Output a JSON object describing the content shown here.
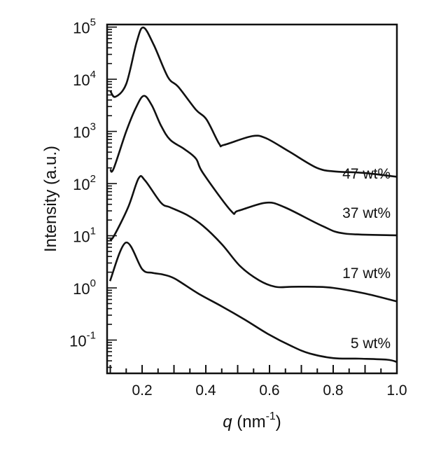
{
  "chart_data": {
    "type": "line",
    "title": "",
    "xlabel": {
      "italic": "q",
      "rest": " (nm",
      "sup": "-1",
      "close": ")"
    },
    "ylabel": "Intensity (a.u.)",
    "xscale": "linear",
    "yscale": "log",
    "xlim": [
      0.09,
      1.0
    ],
    "ylim": [
      0.023,
      112000
    ],
    "xticks": [
      "0.2",
      "0.4",
      "0.6",
      "0.8",
      "1.0"
    ],
    "xtick_values": [
      0.2,
      0.4,
      0.6,
      0.8,
      1.0
    ],
    "yticks": [
      {
        "base": "10",
        "exp": "5",
        "value": 100000
      },
      {
        "base": "10",
        "exp": "4",
        "value": 10000
      },
      {
        "base": "10",
        "exp": "3",
        "value": 1000
      },
      {
        "base": "10",
        "exp": "2",
        "value": 100
      },
      {
        "base": "10",
        "exp": "1",
        "value": 10
      },
      {
        "base": "10",
        "exp": "0",
        "value": 1
      },
      {
        "base": "10",
        "exp": "-1",
        "value": 0.1
      }
    ],
    "grid": false,
    "legend": "none",
    "line_color": "#111111",
    "series": [
      {
        "name": "47 wt%",
        "x": [
          0.1,
          0.116,
          0.15,
          0.183,
          0.204,
          0.237,
          0.281,
          0.314,
          0.369,
          0.402,
          0.442,
          0.457,
          0.545,
          0.589,
          0.662,
          0.749,
          0.809,
          0.897,
          1.0
        ],
        "y": [
          6000,
          4600,
          8100,
          52000,
          98000,
          45000,
          11000,
          7100,
          2600,
          1700,
          580,
          550,
          810,
          740,
          410,
          200,
          170,
          160,
          135
        ]
      },
      {
        "name": "37 wt%",
        "x": [
          0.1,
          0.11,
          0.15,
          0.18,
          0.205,
          0.23,
          0.259,
          0.288,
          0.332,
          0.369,
          0.391,
          0.479,
          0.501,
          0.589,
          0.648,
          0.765,
          0.837,
          1.0
        ],
        "y": [
          190,
          190,
          1000,
          2800,
          4800,
          3200,
          1300,
          690,
          460,
          300,
          160,
          30,
          30,
          43,
          35,
          15.5,
          11,
          10.2
        ]
      },
      {
        "name": "17 wt%",
        "x": [
          0.099,
          0.112,
          0.156,
          0.189,
          0.209,
          0.259,
          0.288,
          0.341,
          0.391,
          0.451,
          0.508,
          0.567,
          0.618,
          0.67,
          0.743,
          0.8,
          0.9,
          1.0
        ],
        "y": [
          8.3,
          10,
          35,
          126,
          115,
          43,
          35,
          25,
          15.5,
          6.8,
          2.6,
          1.4,
          1.05,
          1.05,
          1.05,
          1.0,
          0.78,
          0.55
        ]
      },
      {
        "name": "5 wt%",
        "x": [
          0.099,
          0.149,
          0.2,
          0.231,
          0.266,
          0.303,
          0.376,
          0.451,
          0.523,
          0.596,
          0.67,
          0.727,
          0.802,
          0.881,
          0.969,
          1.0
        ],
        "y": [
          1.35,
          7.4,
          2.3,
          1.95,
          1.8,
          1.5,
          0.78,
          0.44,
          0.245,
          0.13,
          0.076,
          0.055,
          0.045,
          0.044,
          0.042,
          0.038
        ]
      }
    ]
  }
}
